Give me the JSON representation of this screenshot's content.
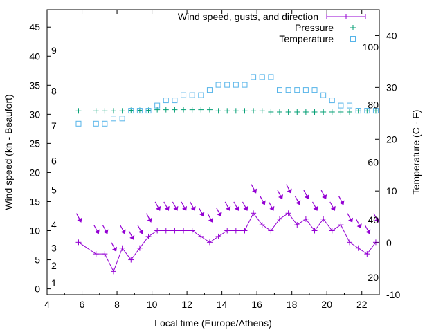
{
  "chart_data": {
    "type": "line",
    "xlabel": "Local time (Europe/Athens)",
    "ylabel": "Wind speed (kn - Beaufort)",
    "y2label": "Temperature (C - F)",
    "xlim": [
      4,
      23
    ],
    "ylim": [
      -1,
      48
    ],
    "y2lim": [
      -10,
      45
    ],
    "x_ticks": [
      4,
      6,
      8,
      10,
      12,
      14,
      16,
      18,
      20,
      22
    ],
    "y_ticks": [
      0,
      5,
      10,
      15,
      20,
      25,
      30,
      35,
      40,
      45
    ],
    "y2_ticks": [
      -10,
      0,
      10,
      20,
      30,
      40
    ],
    "beaufort_labels": [
      {
        "label": "1",
        "value": 1
      },
      {
        "label": "2",
        "value": 4
      },
      {
        "label": "3",
        "value": 7
      },
      {
        "label": "4",
        "value": 11
      },
      {
        "label": "5",
        "value": 17
      },
      {
        "label": "6",
        "value": 22
      },
      {
        "label": "7",
        "value": 28
      },
      {
        "label": "8",
        "value": 34
      },
      {
        "label": "9",
        "value": 41
      }
    ],
    "fahrenheit_labels": [
      {
        "label": "20",
        "value": -6.67
      },
      {
        "label": "40",
        "value": 4.44
      },
      {
        "label": "60",
        "value": 15.56
      },
      {
        "label": "80",
        "value": 26.67
      },
      {
        "label": "100",
        "value": 37.78
      }
    ],
    "legend_position": "top-right",
    "series": [
      {
        "name": "Wind speed, gusts, and direction",
        "axis": "y",
        "color": "#9400d3",
        "marker": "plus",
        "x": [
          5.8,
          6.8,
          7.3,
          7.8,
          8.3,
          8.8,
          9.3,
          9.8,
          10.3,
          10.8,
          11.3,
          11.8,
          12.3,
          12.8,
          13.3,
          13.8,
          14.3,
          14.8,
          15.3,
          15.8,
          16.3,
          16.8,
          17.3,
          17.8,
          18.3,
          18.8,
          19.3,
          19.8,
          20.3,
          20.8,
          21.3,
          21.8,
          22.3,
          22.8
        ],
        "values": [
          8,
          6,
          6,
          3,
          7,
          5,
          7,
          9,
          10,
          10,
          10,
          10,
          10,
          9,
          8,
          9,
          10,
          10,
          10,
          13,
          11,
          10,
          12,
          13,
          11,
          12,
          10,
          12,
          10,
          11,
          8,
          7,
          6,
          8
        ],
        "gusts": [
          12,
          10,
          10,
          7,
          10,
          9,
          10,
          12,
          14,
          14,
          14,
          14,
          14,
          13,
          12,
          13,
          14,
          14,
          14,
          17,
          15,
          14,
          16,
          17,
          15,
          16,
          14,
          16,
          14,
          15,
          12,
          11,
          10,
          12
        ]
      },
      {
        "name": "Pressure",
        "axis": "y",
        "color": "#009e73",
        "marker": "plus",
        "x": [
          5.8,
          6.8,
          7.3,
          7.8,
          8.3,
          8.8,
          9.3,
          9.8,
          10.3,
          10.8,
          11.3,
          11.8,
          12.3,
          12.8,
          13.3,
          13.8,
          14.3,
          14.8,
          15.3,
          15.8,
          16.3,
          16.8,
          17.3,
          17.8,
          18.3,
          18.8,
          19.3,
          19.8,
          20.3,
          20.8,
          21.3,
          21.8,
          22.3,
          22.8
        ],
        "values": [
          30.6,
          30.6,
          30.6,
          30.6,
          30.6,
          30.7,
          30.7,
          30.7,
          30.8,
          30.8,
          30.8,
          30.8,
          30.8,
          30.8,
          30.8,
          30.6,
          30.6,
          30.6,
          30.6,
          30.6,
          30.6,
          30.4,
          30.4,
          30.4,
          30.4,
          30.4,
          30.4,
          30.4,
          30.4,
          30.4,
          30.4,
          30.6,
          30.6,
          30.6
        ]
      },
      {
        "name": "Temperature",
        "axis": "y2",
        "color": "#56b4e9",
        "marker": "square",
        "x": [
          5.8,
          6.8,
          7.3,
          7.8,
          8.3,
          8.8,
          9.3,
          9.8,
          10.3,
          10.8,
          11.3,
          11.8,
          12.3,
          12.8,
          13.3,
          13.8,
          14.3,
          14.8,
          15.3,
          15.8,
          16.3,
          16.8,
          17.3,
          17.8,
          18.3,
          18.8,
          19.3,
          19.8,
          20.3,
          20.8,
          21.3,
          21.8,
          22.3,
          22.8
        ],
        "values": [
          23,
          23,
          23,
          24,
          24,
          25.5,
          25.5,
          25.5,
          26.5,
          27.5,
          27.5,
          28.5,
          28.5,
          28.5,
          29.5,
          30.5,
          30.5,
          30.5,
          30.5,
          32,
          32,
          32,
          29.5,
          29.5,
          29.5,
          29.5,
          29.5,
          28.5,
          27.5,
          26.5,
          26.5,
          25.5,
          25.5,
          25.5
        ]
      }
    ]
  }
}
